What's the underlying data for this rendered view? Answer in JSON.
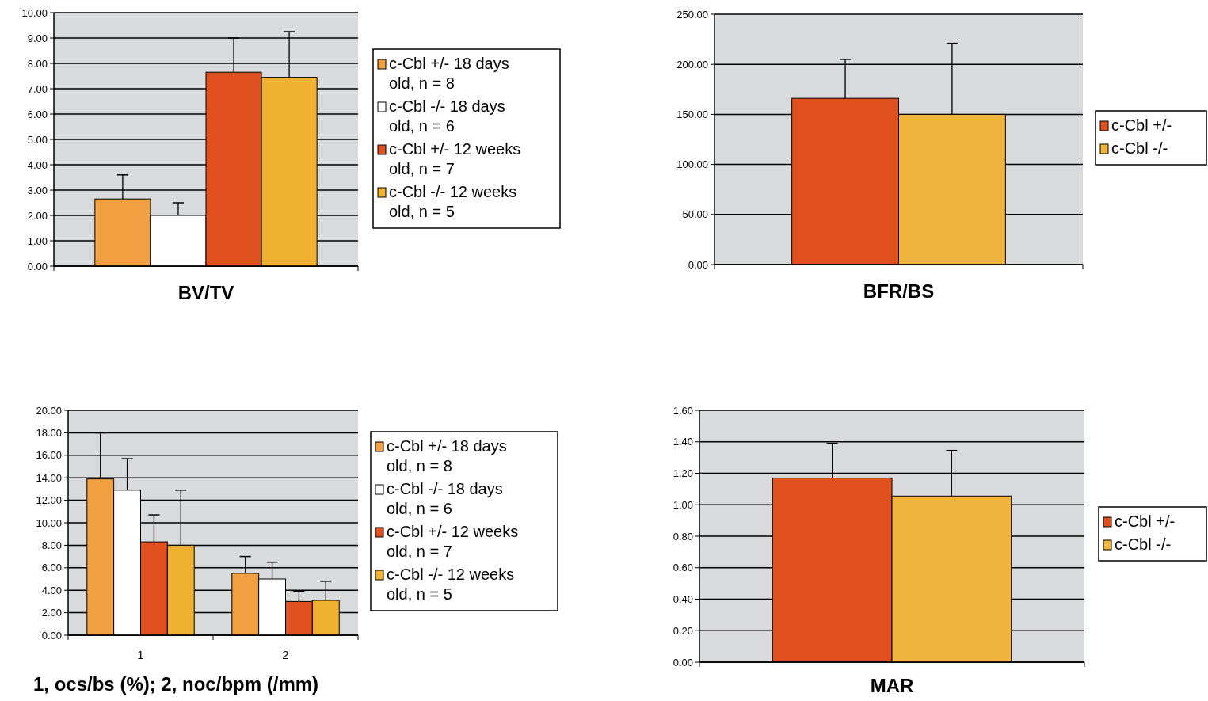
{
  "chart_data": [
    {
      "type": "bar",
      "xlabel": "BV/TV",
      "categories": [
        null
      ],
      "ylim": [
        0,
        10
      ],
      "yticks": [
        {
          "value": 0,
          "label": "0.00"
        },
        {
          "value": 1,
          "label": "1.00"
        },
        {
          "value": 2,
          "label": "2.00"
        },
        {
          "value": 3,
          "label": "3.00"
        },
        {
          "value": 4,
          "label": "4.00"
        },
        {
          "value": 5,
          "label": "5.00"
        },
        {
          "value": 6,
          "label": "6.00"
        },
        {
          "value": 7,
          "label": "7.00"
        },
        {
          "value": 8,
          "label": "8.00"
        },
        {
          "value": 9,
          "label": "9.00"
        },
        {
          "value": 10,
          "label": "10.00"
        }
      ],
      "grid": "y",
      "legend": "right",
      "series": [
        {
          "name": "c-Cbl +/- 18 days old, n = 8",
          "color": "#f0a040",
          "values": [
            2.65
          ],
          "errors": [
            [
              2.65,
              3.6
            ]
          ]
        },
        {
          "name": "c-Cbl -/- 18 days old, n = 6",
          "color": "#ffffff",
          "values": [
            2.0
          ],
          "errors": [
            [
              2.0,
              2.5
            ]
          ]
        },
        {
          "name": "c-Cbl +/- 12 weeks old, n = 7",
          "color": "#e05020",
          "values": [
            7.65
          ],
          "errors": [
            [
              7.65,
              9.0
            ]
          ]
        },
        {
          "name": "c-Cbl -/- 12 weeks old, n = 5",
          "color": "#f0b030",
          "values": [
            7.45
          ],
          "errors": [
            [
              7.45,
              9.25
            ]
          ]
        }
      ]
    },
    {
      "type": "bar",
      "xlabel": "BFR/BS",
      "categories": [
        null
      ],
      "ylim": [
        0,
        250
      ],
      "yticks": [
        {
          "value": 0,
          "label": "0.00"
        },
        {
          "value": 50,
          "label": "50.00"
        },
        {
          "value": 100,
          "label": "100.00"
        },
        {
          "value": 150,
          "label": "150.00"
        },
        {
          "value": 200,
          "label": "200.00"
        },
        {
          "value": 250,
          "label": "250.00"
        }
      ],
      "grid": "y",
      "legend": "right",
      "series": [
        {
          "name": "c-Cbl +/-",
          "color": "#e0501e",
          "values": [
            166
          ],
          "errors": [
            [
              166,
              205
            ]
          ]
        },
        {
          "name": "c-Cbl -/-",
          "color": "#f0b43c",
          "values": [
            150
          ],
          "errors": [
            [
              150,
              221
            ]
          ]
        }
      ]
    },
    {
      "type": "bar",
      "xlabel": "1, ocs/bs (%); 2, noc/bpm (/mm)",
      "categories": [
        "1",
        "2"
      ],
      "ylim": [
        0,
        20
      ],
      "yticks": [
        {
          "value": 0,
          "label": "0.00"
        },
        {
          "value": 2,
          "label": "2.00"
        },
        {
          "value": 4,
          "label": "4.00"
        },
        {
          "value": 6,
          "label": "6.00"
        },
        {
          "value": 8,
          "label": "8.00"
        },
        {
          "value": 10,
          "label": "10.00"
        },
        {
          "value": 12,
          "label": "12.00"
        },
        {
          "value": 14,
          "label": "14.00"
        },
        {
          "value": 16,
          "label": "16.00"
        },
        {
          "value": 18,
          "label": "18.00"
        },
        {
          "value": 20,
          "label": "20.00"
        }
      ],
      "grid": "y",
      "legend": "right",
      "series": [
        {
          "name": "c-Cbl +/- 18 days old, n = 8",
          "color": "#f0a040",
          "values": [
            13.9,
            5.5
          ],
          "errors": [
            [
              13.9,
              18.0
            ],
            [
              5.5,
              7.0
            ]
          ]
        },
        {
          "name": "c-Cbl -/- 18 days old, n = 6",
          "color": "#ffffff",
          "values": [
            12.9,
            5.0
          ],
          "errors": [
            [
              12.9,
              15.7
            ],
            [
              5.0,
              6.5
            ]
          ]
        },
        {
          "name": "c-Cbl +/- 12 weeks old, n = 7",
          "color": "#e05020",
          "values": [
            8.3,
            3.0
          ],
          "errors": [
            [
              8.3,
              10.7
            ],
            [
              3.0,
              3.9
            ]
          ]
        },
        {
          "name": "c-Cbl -/- 12 weeks old, n = 5",
          "color": "#f0b030",
          "values": [
            8.0,
            3.1
          ],
          "errors": [
            [
              8.0,
              12.9
            ],
            [
              3.1,
              4.8
            ]
          ]
        }
      ]
    },
    {
      "type": "bar",
      "xlabel": "MAR",
      "categories": [
        null
      ],
      "ylim": [
        0,
        1.6
      ],
      "yticks": [
        {
          "value": 0,
          "label": "0.00"
        },
        {
          "value": 0.2,
          "label": "0.20"
        },
        {
          "value": 0.4,
          "label": "0.40"
        },
        {
          "value": 0.6,
          "label": "0.60"
        },
        {
          "value": 0.8,
          "label": "0.80"
        },
        {
          "value": 1.0,
          "label": "1.00"
        },
        {
          "value": 1.2,
          "label": "1.20"
        },
        {
          "value": 1.4,
          "label": "1.40"
        },
        {
          "value": 1.6,
          "label": "1.60"
        }
      ],
      "grid": "y",
      "legend": "right",
      "series": [
        {
          "name": "c-Cbl +/-",
          "color": "#e0501e",
          "values": [
            1.17
          ],
          "errors": [
            [
              1.17,
              1.39
            ]
          ]
        },
        {
          "name": "c-Cbl -/-",
          "color": "#f0b43c",
          "values": [
            1.055
          ],
          "errors": [
            [
              1.055,
              1.345
            ]
          ]
        }
      ]
    }
  ]
}
